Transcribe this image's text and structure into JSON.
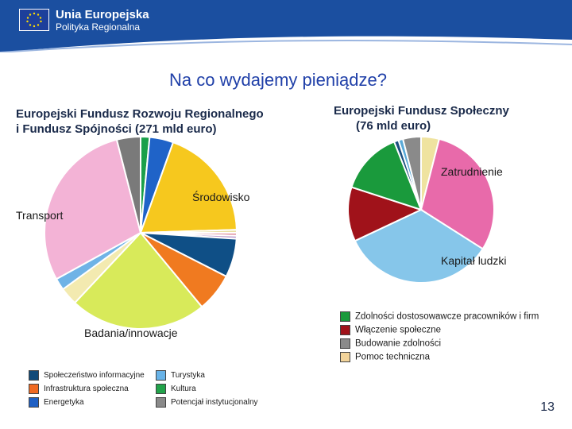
{
  "header": {
    "brand_line1": "Unia Europejska",
    "brand_line2": "Polityka Regionalna",
    "brand_color": "#1b4fa0"
  },
  "title": "Na co wydajemy pieniądze?",
  "page_number": "13",
  "chart_data": [
    {
      "type": "pie",
      "title": "Europejski Fundusz Rozwoju Regionalnego i Fundusz Spójności (271 mld euro)",
      "title_line1": "Europejski Fundusz Rozwoju Regionalnego",
      "title_line2": "i Fundusz Spójności (271 mld euro)",
      "slices": [
        {
          "label": "",
          "value": 1.5,
          "color": "#1aa04a"
        },
        {
          "label": "",
          "value": 4.0,
          "color": "#1f63c8"
        },
        {
          "label": "Środowisko",
          "value": 19.0,
          "color": "#f6c81e"
        },
        {
          "label": "",
          "value": 0.5,
          "color": "#e8e0a0"
        },
        {
          "label": "",
          "value": 0.5,
          "color": "#e090a0"
        },
        {
          "label": "",
          "value": 0.5,
          "color": "#c0a0d0"
        },
        {
          "label": "",
          "value": 6.5,
          "color": "#0f4f86"
        },
        {
          "label": "",
          "value": 6.5,
          "color": "#f07a20"
        },
        {
          "label": "Badania/innowacje",
          "value": 23.0,
          "color": "#d8ea5a"
        },
        {
          "label": "",
          "value": 3.0,
          "color": "#f3eab0"
        },
        {
          "label": "",
          "value": 2.0,
          "color": "#6fb3e6"
        },
        {
          "label": "Transport",
          "value": 29.0,
          "color": "#f3b3d6"
        },
        {
          "label": "",
          "value": 4.0,
          "color": "#7a7a7a"
        }
      ],
      "legend": [
        {
          "label": "Społeczeństwo informacyjne",
          "color": "#124a78"
        },
        {
          "label": "Turystyka",
          "color": "#68b3e8"
        },
        {
          "label": "Infrastruktura społeczna",
          "color": "#f06a22"
        },
        {
          "label": "Kultura",
          "color": "#22a34a"
        },
        {
          "label": "Energetyka",
          "color": "#1f60c4"
        },
        {
          "label": "Potencjał instytucjonalny",
          "color": "#8a8a8a"
        }
      ]
    },
    {
      "type": "pie",
      "title": "Europejski Fundusz Społeczny (76 mld euro)",
      "title_line1": "Europejski Fundusz Społeczny",
      "title_line2": "(76 mld euro)",
      "slices": [
        {
          "label": "",
          "value": 4.0,
          "color": "#efe3a0"
        },
        {
          "label": "Zatrudnienie",
          "value": 30.0,
          "color": "#e86aaa"
        },
        {
          "label": "Kapitał ludzki",
          "value": 34.0,
          "color": "#86c6ea"
        },
        {
          "label": "",
          "value": 12.0,
          "color": "#a0121a"
        },
        {
          "label": "",
          "value": 14.0,
          "color": "#1a9a3c"
        },
        {
          "label": "",
          "value": 1.0,
          "color": "#1b4f80"
        },
        {
          "label": "",
          "value": 1.0,
          "color": "#5aaad8"
        },
        {
          "label": "",
          "value": 4.0,
          "color": "#8a8a8a"
        }
      ],
      "legend": [
        {
          "label": "Zdolności dostosowawcze pracowników i firm",
          "color": "#1a9a3c"
        },
        {
          "label": "Włączenie społeczne",
          "color": "#a0121a"
        },
        {
          "label": "Budowanie zdolności",
          "color": "#8a8a8a"
        },
        {
          "label": "Pomoc techniczna",
          "color": "#f3d49a"
        }
      ]
    }
  ]
}
